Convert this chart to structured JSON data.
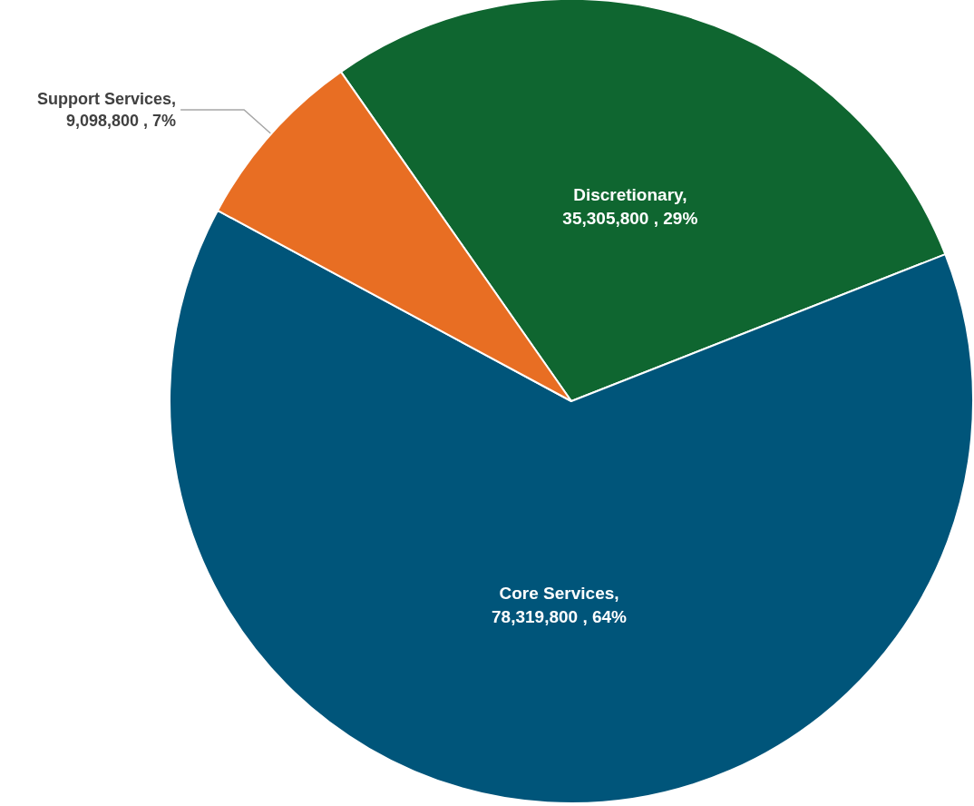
{
  "chart_data": {
    "type": "pie",
    "categories": [
      "Discretionary",
      "Core Services",
      "Support Services"
    ],
    "values": [
      35305800,
      78319800,
      9098800
    ],
    "value_labels": [
      ",\n35,305,800 , 29%",
      ",\n78,319,800 , 64%",
      ",\n9,098,800 , 7%"
    ],
    "colors": [
      "#0f6630",
      "#00557a",
      "#e86e23"
    ],
    "legend": false
  }
}
